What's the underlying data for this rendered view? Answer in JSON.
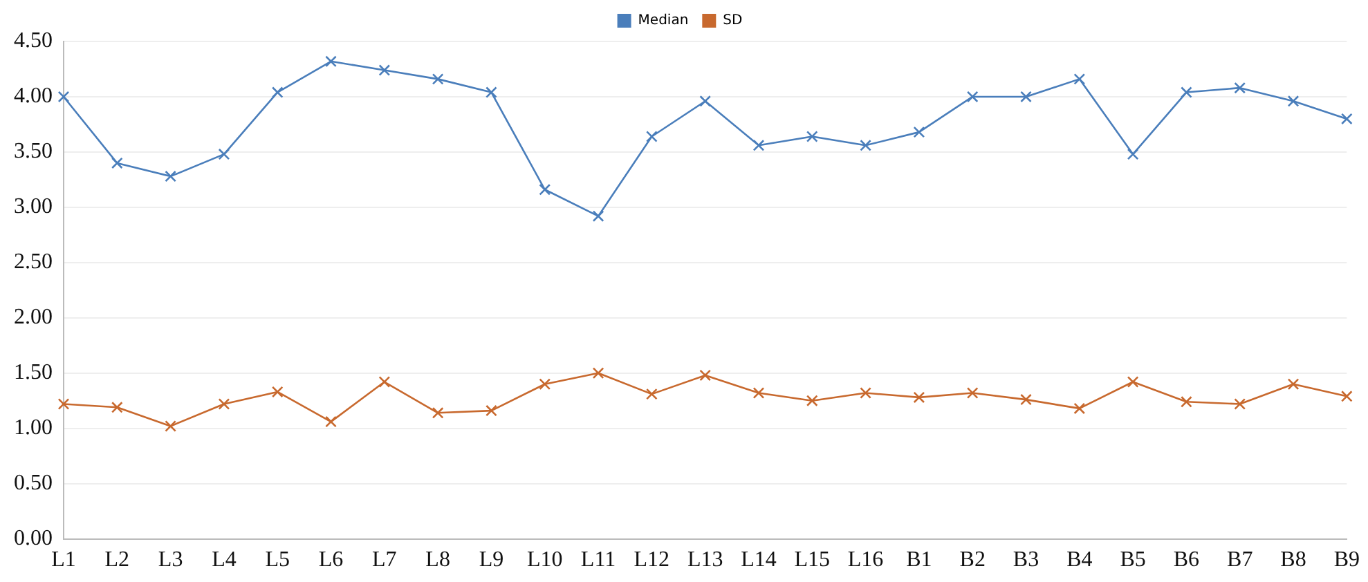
{
  "chart_data": {
    "type": "line",
    "categories": [
      "L1",
      "L2",
      "L3",
      "L4",
      "L5",
      "L6",
      "L7",
      "L8",
      "L9",
      "L10",
      "L11",
      "L12",
      "L13",
      "L14",
      "L15",
      "L16",
      "B1",
      "B2",
      "B3",
      "B4",
      "B5",
      "B6",
      "B7",
      "B8",
      "B9"
    ],
    "series": [
      {
        "name": "Median",
        "color": "#4a7ebb",
        "values": [
          4.0,
          3.4,
          3.28,
          3.48,
          4.04,
          4.32,
          4.24,
          4.16,
          4.04,
          3.16,
          2.92,
          3.64,
          3.96,
          3.56,
          3.64,
          3.56,
          3.68,
          4.0,
          4.0,
          4.16,
          3.48,
          4.04,
          4.08,
          3.96,
          3.8
        ]
      },
      {
        "name": "SD",
        "color": "#c8692e",
        "values": [
          1.22,
          1.19,
          1.02,
          1.22,
          1.33,
          1.06,
          1.42,
          1.14,
          1.16,
          1.4,
          1.5,
          1.31,
          1.48,
          1.32,
          1.25,
          1.32,
          1.28,
          1.32,
          1.26,
          1.18,
          1.42,
          1.24,
          1.22,
          1.4,
          1.29
        ]
      }
    ],
    "ylim": [
      0,
      4.5
    ],
    "yticks": [
      {
        "value": 0,
        "label": "0.00"
      },
      {
        "value": 0.5,
        "label": "0.50"
      },
      {
        "value": 1,
        "label": "1.00"
      },
      {
        "value": 1.5,
        "label": "1.50"
      },
      {
        "value": 2,
        "label": "2.00"
      },
      {
        "value": 2.5,
        "label": "2.50"
      },
      {
        "value": 3,
        "label": "3.00"
      },
      {
        "value": 3.5,
        "label": "3.50"
      },
      {
        "value": 4,
        "label": "4.00"
      },
      {
        "value": 4.5,
        "label": "4.50"
      }
    ],
    "grid": "y",
    "legend": "top",
    "marker": "cross",
    "line_style": "solid"
  }
}
